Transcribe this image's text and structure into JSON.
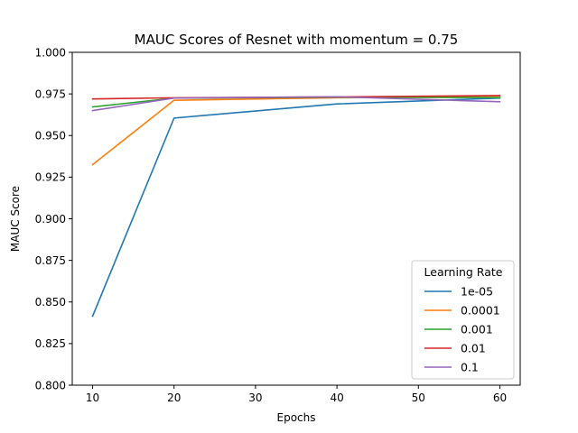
{
  "chart_data": {
    "type": "line",
    "title": "MAUC Scores of Resnet with momentum = 0.75",
    "xlabel": "Epochs",
    "ylabel": "MAUC Score",
    "xlim": [
      7.5,
      62.5
    ],
    "ylim": [
      0.8,
      1.0
    ],
    "xticks": [
      10,
      20,
      30,
      40,
      50,
      60
    ],
    "xtick_labels": [
      "10",
      "20",
      "30",
      "40",
      "50",
      "60"
    ],
    "yticks": [
      0.8,
      0.825,
      0.85,
      0.875,
      0.9,
      0.925,
      0.95,
      0.975,
      1.0
    ],
    "ytick_labels": [
      "0.800",
      "0.825",
      "0.850",
      "0.875",
      "0.900",
      "0.925",
      "0.950",
      "0.975",
      "1.000"
    ],
    "grid": false,
    "legend": {
      "title": "Learning Rate",
      "placement": "lower-right"
    },
    "x": [
      10,
      20,
      40,
      60
    ],
    "series": [
      {
        "name": "1e-05",
        "color": "#1f77b4",
        "values": [
          0.8415,
          0.9605,
          0.969,
          0.9725
        ]
      },
      {
        "name": "0.0001",
        "color": "#ff7f0e",
        "values": [
          0.9325,
          0.9712,
          0.9727,
          0.9738
        ]
      },
      {
        "name": "0.001",
        "color": "#2ca02c",
        "values": [
          0.9672,
          0.9725,
          0.973,
          0.9728
        ]
      },
      {
        "name": "0.01",
        "color": "#d62728",
        "values": [
          0.972,
          0.9727,
          0.9732,
          0.974
        ]
      },
      {
        "name": "0.1",
        "color": "#9467bd",
        "values": [
          0.965,
          0.9725,
          0.9733,
          0.9703
        ]
      }
    ]
  }
}
